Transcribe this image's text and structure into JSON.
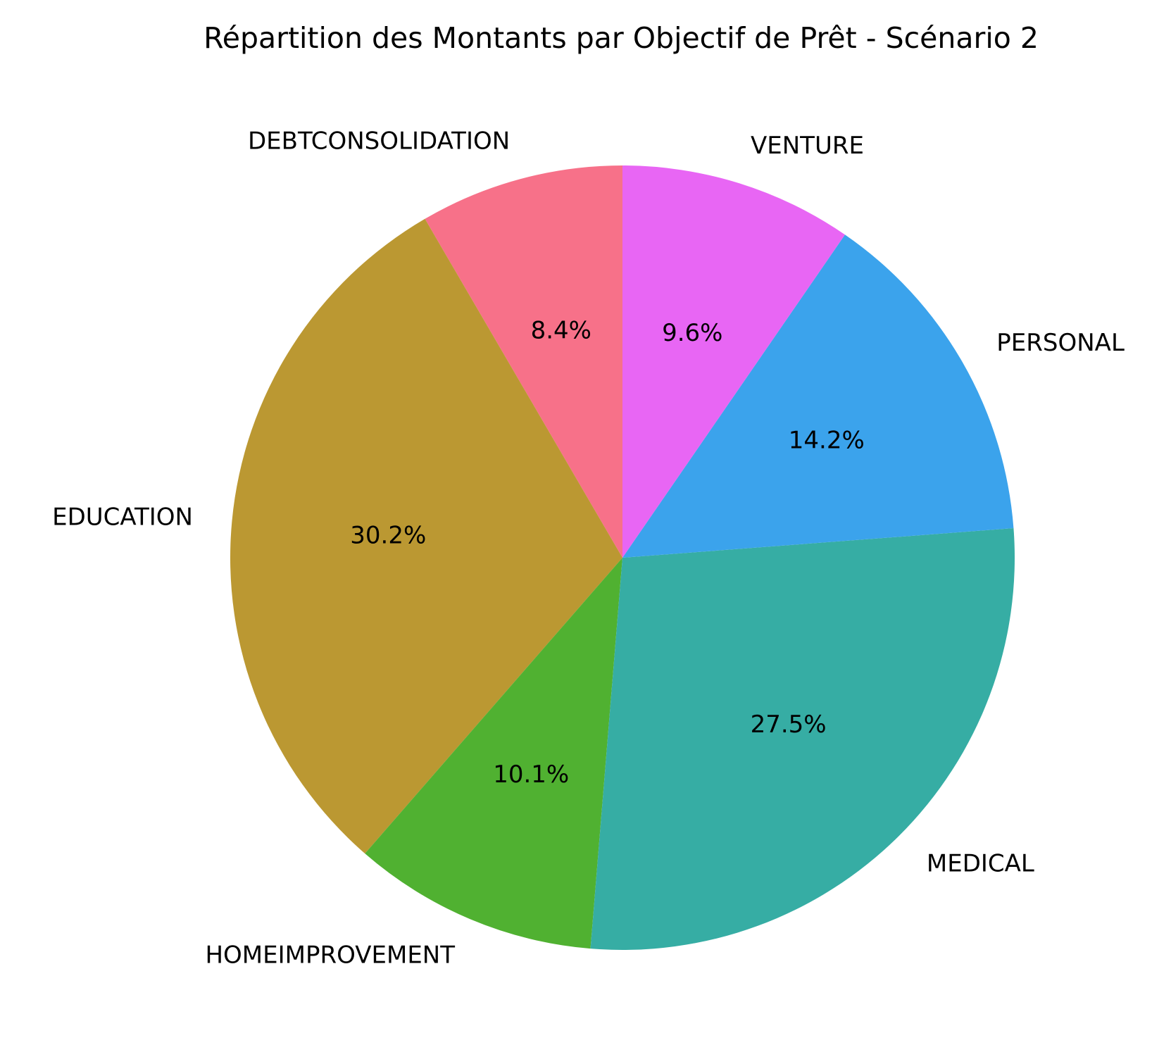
{
  "chart_data": {
    "type": "pie",
    "title": "Répartition des Montants par Objectif de Prêt - Scénario 2",
    "start_angle_deg": 90,
    "direction": "counterclockwise",
    "slices": [
      {
        "label": "DEBTCONSOLIDATION",
        "value": 8.4,
        "pct_label": "8.4%",
        "color": "#f77189"
      },
      {
        "label": "EDUCATION",
        "value": 30.2,
        "pct_label": "30.2%",
        "color": "#bb9832"
      },
      {
        "label": "HOMEIMPROVEMENT",
        "value": 10.1,
        "pct_label": "10.1%",
        "color": "#50b131"
      },
      {
        "label": "MEDICAL",
        "value": 27.5,
        "pct_label": "27.5%",
        "color": "#36ada4"
      },
      {
        "label": "PERSONAL",
        "value": 14.2,
        "pct_label": "14.2%",
        "color": "#3ba3ec"
      },
      {
        "label": "VENTURE",
        "value": 9.6,
        "pct_label": "9.6%",
        "color": "#e866f4"
      }
    ]
  }
}
